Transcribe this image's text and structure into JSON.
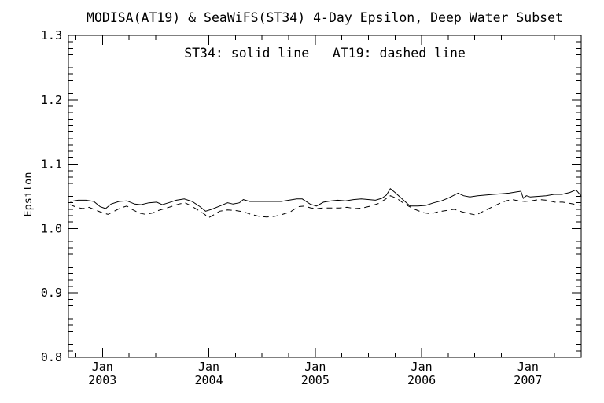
{
  "window": {
    "background_color": "#ffffff",
    "foreground_color": "#000000"
  },
  "chart_data": {
    "type": "line",
    "title": "MODISA(AT19) & SeaWiFS(ST34) 4-Day Epsilon, Deep Water Subset",
    "annotation": "ST34: solid line   AT19: dashed line",
    "xlabel": "",
    "ylabel": "Epsilon",
    "xlim": [
      2002.68,
      2007.5
    ],
    "ylim": [
      0.8,
      1.3
    ],
    "grid": false,
    "legend_position": "inside-top-center",
    "x_major_ticks": [
      2003,
      2004,
      2005,
      2006,
      2007
    ],
    "x_tick_labels": [
      [
        "Jan",
        "2003"
      ],
      [
        "Jan",
        "2004"
      ],
      [
        "Jan",
        "2005"
      ],
      [
        "Jan",
        "2006"
      ],
      [
        "Jan",
        "2007"
      ]
    ],
    "x_minor_interval": 0.25,
    "y_major_ticks": [
      0.8,
      0.9,
      1.0,
      1.1,
      1.2,
      1.3
    ],
    "y_tick_labels": [
      "0.8",
      "0.9",
      "1.0",
      "1.1",
      "1.2",
      "1.3"
    ],
    "y_minor_interval": 0.01,
    "series": [
      {
        "name": "ST34",
        "instrument": "SeaWiFS",
        "style": "solid",
        "color": "#000000",
        "points": [
          [
            2002.697,
            1.042
          ],
          [
            2002.771,
            1.044
          ],
          [
            2002.845,
            1.044
          ],
          [
            2002.919,
            1.042
          ],
          [
            2002.978,
            1.034
          ],
          [
            2003.03,
            1.031
          ],
          [
            2003.081,
            1.038
          ],
          [
            2003.155,
            1.042
          ],
          [
            2003.229,
            1.043
          ],
          [
            2003.303,
            1.038
          ],
          [
            2003.362,
            1.037
          ],
          [
            2003.436,
            1.04
          ],
          [
            2003.51,
            1.041
          ],
          [
            2003.562,
            1.037
          ],
          [
            2003.621,
            1.04
          ],
          [
            2003.695,
            1.044
          ],
          [
            2003.769,
            1.046
          ],
          [
            2003.843,
            1.042
          ],
          [
            2003.917,
            1.034
          ],
          [
            2003.969,
            1.027
          ],
          [
            2004.028,
            1.03
          ],
          [
            2004.102,
            1.035
          ],
          [
            2004.176,
            1.04
          ],
          [
            2004.227,
            1.038
          ],
          [
            2004.287,
            1.04
          ],
          [
            2004.324,
            1.045
          ],
          [
            2004.383,
            1.042
          ],
          [
            2004.457,
            1.042
          ],
          [
            2004.531,
            1.042
          ],
          [
            2004.605,
            1.042
          ],
          [
            2004.679,
            1.042
          ],
          [
            2004.752,
            1.044
          ],
          [
            2004.826,
            1.046
          ],
          [
            2004.878,
            1.046
          ],
          [
            2004.952,
            1.038
          ],
          [
            2005.011,
            1.035
          ],
          [
            2005.078,
            1.041
          ],
          [
            2005.152,
            1.043
          ],
          [
            2005.211,
            1.044
          ],
          [
            2005.285,
            1.043
          ],
          [
            2005.359,
            1.045
          ],
          [
            2005.433,
            1.046
          ],
          [
            2005.507,
            1.045
          ],
          [
            2005.566,
            1.044
          ],
          [
            2005.625,
            1.047
          ],
          [
            2005.669,
            1.052
          ],
          [
            2005.706,
            1.062
          ],
          [
            2005.75,
            1.056
          ],
          [
            2005.817,
            1.046
          ],
          [
            2005.891,
            1.035
          ],
          [
            2005.965,
            1.035
          ],
          [
            2006.039,
            1.036
          ],
          [
            2006.113,
            1.04
          ],
          [
            2006.187,
            1.043
          ],
          [
            2006.261,
            1.048
          ],
          [
            2006.342,
            1.055
          ],
          [
            2006.394,
            1.051
          ],
          [
            2006.453,
            1.049
          ],
          [
            2006.527,
            1.051
          ],
          [
            2006.601,
            1.052
          ],
          [
            2006.675,
            1.053
          ],
          [
            2006.749,
            1.054
          ],
          [
            2006.823,
            1.055
          ],
          [
            2006.897,
            1.057
          ],
          [
            2006.934,
            1.058
          ],
          [
            2006.956,
            1.047
          ],
          [
            2006.985,
            1.051
          ],
          [
            2007.022,
            1.049
          ],
          [
            2007.096,
            1.05
          ],
          [
            2007.17,
            1.051
          ],
          [
            2007.244,
            1.053
          ],
          [
            2007.318,
            1.053
          ],
          [
            2007.392,
            1.056
          ],
          [
            2007.451,
            1.06
          ],
          [
            2007.503,
            1.05
          ]
        ]
      },
      {
        "name": "AT19",
        "instrument": "MODISA",
        "style": "dashed",
        "color": "#000000",
        "points": [
          [
            2002.697,
            1.037
          ],
          [
            2002.756,
            1.033
          ],
          [
            2002.815,
            1.031
          ],
          [
            2002.874,
            1.033
          ],
          [
            2002.933,
            1.029
          ],
          [
            2002.993,
            1.025
          ],
          [
            2003.052,
            1.022
          ],
          [
            2003.111,
            1.027
          ],
          [
            2003.17,
            1.032
          ],
          [
            2003.229,
            1.035
          ],
          [
            2003.288,
            1.029
          ],
          [
            2003.347,
            1.024
          ],
          [
            2003.407,
            1.022
          ],
          [
            2003.466,
            1.024
          ],
          [
            2003.525,
            1.028
          ],
          [
            2003.584,
            1.031
          ],
          [
            2003.643,
            1.034
          ],
          [
            2003.717,
            1.038
          ],
          [
            2003.776,
            1.04
          ],
          [
            2003.836,
            1.035
          ],
          [
            2003.895,
            1.029
          ],
          [
            2003.954,
            1.023
          ],
          [
            2003.998,
            1.017
          ],
          [
            2004.043,
            1.021
          ],
          [
            2004.102,
            1.027
          ],
          [
            2004.176,
            1.029
          ],
          [
            2004.25,
            1.028
          ],
          [
            2004.324,
            1.026
          ],
          [
            2004.398,
            1.022
          ],
          [
            2004.471,
            1.019
          ],
          [
            2004.545,
            1.018
          ],
          [
            2004.619,
            1.019
          ],
          [
            2004.693,
            1.022
          ],
          [
            2004.767,
            1.026
          ],
          [
            2004.841,
            1.034
          ],
          [
            2004.9,
            1.035
          ],
          [
            2004.959,
            1.032
          ],
          [
            2005.019,
            1.031
          ],
          [
            2005.078,
            1.032
          ],
          [
            2005.152,
            1.032
          ],
          [
            2005.226,
            1.032
          ],
          [
            2005.3,
            1.033
          ],
          [
            2005.374,
            1.031
          ],
          [
            2005.448,
            1.032
          ],
          [
            2005.522,
            1.035
          ],
          [
            2005.596,
            1.039
          ],
          [
            2005.655,
            1.045
          ],
          [
            2005.706,
            1.051
          ],
          [
            2005.766,
            1.047
          ],
          [
            2005.817,
            1.041
          ],
          [
            2005.876,
            1.035
          ],
          [
            2005.935,
            1.03
          ],
          [
            2006.009,
            1.025
          ],
          [
            2006.083,
            1.023
          ],
          [
            2006.157,
            1.026
          ],
          [
            2006.231,
            1.028
          ],
          [
            2006.305,
            1.03
          ],
          [
            2006.379,
            1.026
          ],
          [
            2006.453,
            1.023
          ],
          [
            2006.512,
            1.021
          ],
          [
            2006.571,
            1.026
          ],
          [
            2006.645,
            1.032
          ],
          [
            2006.719,
            1.038
          ],
          [
            2006.793,
            1.043
          ],
          [
            2006.852,
            1.045
          ],
          [
            2006.911,
            1.043
          ],
          [
            2006.97,
            1.042
          ],
          [
            2007.029,
            1.043
          ],
          [
            2007.103,
            1.045
          ],
          [
            2007.177,
            1.044
          ],
          [
            2007.251,
            1.041
          ],
          [
            2007.325,
            1.041
          ],
          [
            2007.399,
            1.039
          ],
          [
            2007.458,
            1.037
          ],
          [
            2007.503,
            1.036
          ]
        ]
      }
    ]
  }
}
